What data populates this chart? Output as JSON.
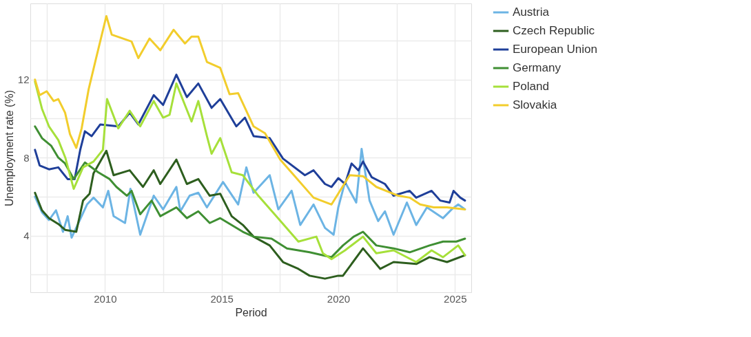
{
  "chart_data": {
    "type": "line",
    "xlabel": "Period",
    "ylabel": "Unemployment rate (%)",
    "xlim": [
      2006.8,
      2025.7
    ],
    "xticks": [
      {
        "value": 2007.5,
        "label": null
      },
      2010,
      {
        "value": 2012.5,
        "label": null
      },
      2015,
      {
        "value": 2017.5,
        "label": null
      },
      2020,
      {
        "value": 2022.5,
        "label": null
      },
      2025
    ],
    "ylim": [
      1.1,
      15.9
    ],
    "yticks": [
      {
        "value": 2,
        "label": null
      },
      4,
      {
        "value": 6,
        "label": null
      },
      8,
      {
        "value": 10,
        "label": null
      },
      12,
      {
        "value": 14,
        "label": null
      }
    ],
    "grid": true,
    "legend": "right",
    "line_style": "solid",
    "marker": "none",
    "series": [
      {
        "name": "Austria",
        "color": "#6cb4e4",
        "x": [
          2007.0,
          2007.3,
          2007.6,
          2007.9,
          2008.2,
          2008.4,
          2008.57,
          2009.23,
          2009.51,
          2009.91,
          2010.14,
          2010.37,
          2010.86,
          2011.09,
          2011.51,
          2012.09,
          2012.49,
          2013.06,
          2013.23,
          2013.63,
          2014.0,
          2014.37,
          2015.06,
          2015.71,
          2016.06,
          2016.37,
          2017.06,
          2017.43,
          2018.0,
          2018.37,
          2018.94,
          2019.43,
          2019.8,
          2020.0,
          2020.29,
          2020.77,
          2021.0,
          2021.34,
          2021.71,
          2022.0,
          2022.37,
          2022.94,
          2023.34,
          2023.8,
          2024.49,
          2024.86,
          2025.14,
          2025.43
        ],
        "values": [
          6.0,
          5.2,
          4.8,
          5.3,
          4.2,
          5.0,
          3.9,
          5.6,
          5.95,
          5.45,
          6.3,
          5.0,
          4.65,
          6.4,
          4.05,
          6.05,
          5.35,
          6.5,
          5.25,
          6.05,
          6.2,
          5.45,
          6.75,
          5.6,
          7.5,
          6.2,
          7.1,
          5.35,
          6.3,
          4.55,
          5.6,
          4.4,
          4.05,
          5.45,
          6.75,
          5.7,
          8.45,
          5.8,
          4.75,
          5.25,
          4.05,
          5.7,
          4.55,
          5.45,
          4.9,
          5.35,
          5.6,
          5.35
        ]
      },
      {
        "name": "Czech Republic",
        "color": "#2d5e1e",
        "x": [
          2007.0,
          2007.3,
          2007.6,
          2008.0,
          2008.29,
          2008.77,
          2009.06,
          2009.34,
          2009.51,
          2010.06,
          2010.37,
          2011.06,
          2011.63,
          2012.09,
          2012.37,
          2013.06,
          2013.51,
          2014.0,
          2014.49,
          2014.94,
          2015.43,
          2015.91,
          2016.37,
          2017.06,
          2017.63,
          2018.29,
          2018.77,
          2019.43,
          2020.0,
          2020.2,
          2021.06,
          2021.8,
          2022.37,
          2023.34,
          2023.91,
          2024.66,
          2025.43
        ],
        "values": [
          6.2,
          5.3,
          4.9,
          4.6,
          4.3,
          4.2,
          5.8,
          6.15,
          7.2,
          8.35,
          7.1,
          7.35,
          6.5,
          7.35,
          6.65,
          7.9,
          6.65,
          6.9,
          6.05,
          6.15,
          5.0,
          4.55,
          3.95,
          3.5,
          2.65,
          2.3,
          1.95,
          1.8,
          1.95,
          1.95,
          3.35,
          2.3,
          2.65,
          2.55,
          2.9,
          2.65,
          3.0
        ]
      },
      {
        "name": "European Union",
        "color": "#1f3f99",
        "x": [
          2007.0,
          2007.2,
          2007.6,
          2008.0,
          2008.4,
          2008.7,
          2008.94,
          2009.14,
          2009.43,
          2009.8,
          2010.57,
          2011.06,
          2011.43,
          2012.09,
          2012.49,
          2013.06,
          2013.51,
          2014.0,
          2014.57,
          2014.94,
          2015.63,
          2016.0,
          2016.37,
          2017.06,
          2017.63,
          2018.57,
          2018.94,
          2019.43,
          2019.71,
          2020.0,
          2020.29,
          2020.57,
          2020.86,
          2021.06,
          2021.43,
          2022.0,
          2022.37,
          2023.06,
          2023.34,
          2024.0,
          2024.37,
          2024.77,
          2024.94,
          2025.23,
          2025.43
        ],
        "values": [
          8.4,
          7.6,
          7.4,
          7.5,
          6.9,
          6.9,
          8.4,
          9.35,
          9.1,
          9.7,
          9.6,
          10.3,
          9.7,
          11.2,
          10.7,
          12.25,
          11.1,
          11.8,
          10.55,
          11.0,
          9.6,
          10.05,
          9.1,
          9.0,
          7.95,
          7.1,
          7.35,
          6.65,
          6.5,
          6.95,
          6.65,
          7.7,
          7.35,
          7.8,
          7.0,
          6.65,
          6.05,
          6.3,
          5.95,
          6.3,
          5.8,
          5.7,
          6.3,
          5.95,
          5.8
        ]
      },
      {
        "name": "Germany",
        "color": "#3f8f33",
        "x": [
          2007.0,
          2007.3,
          2007.7,
          2008.0,
          2008.29,
          2008.66,
          2009.14,
          2009.71,
          2010.2,
          2010.49,
          2010.94,
          2011.14,
          2011.51,
          2012.0,
          2012.37,
          2013.06,
          2013.51,
          2014.0,
          2014.49,
          2014.94,
          2015.91,
          2016.37,
          2017.14,
          2017.8,
          2018.77,
          2019.71,
          2020.2,
          2020.66,
          2021.06,
          2021.63,
          2022.37,
          2023.06,
          2023.91,
          2024.49,
          2025.06,
          2025.43
        ],
        "values": [
          9.6,
          9.0,
          8.6,
          8.0,
          7.7,
          6.9,
          7.75,
          7.25,
          6.9,
          6.5,
          6.05,
          6.3,
          5.1,
          5.8,
          5.0,
          5.45,
          4.9,
          5.25,
          4.65,
          4.9,
          4.2,
          3.95,
          3.85,
          3.35,
          3.15,
          2.9,
          3.5,
          3.95,
          4.2,
          3.5,
          3.35,
          3.15,
          3.5,
          3.7,
          3.7,
          3.85
        ]
      },
      {
        "name": "Poland",
        "color": "#a6e03a",
        "x": [
          2007.0,
          2007.3,
          2007.6,
          2008.0,
          2008.3,
          2008.66,
          2009.06,
          2009.51,
          2009.91,
          2010.09,
          2010.57,
          2011.06,
          2011.51,
          2012.09,
          2012.49,
          2012.77,
          2013.06,
          2013.71,
          2014.0,
          2014.37,
          2014.57,
          2014.94,
          2015.43,
          2015.91,
          2016.57,
          2017.34,
          2018.29,
          2019.06,
          2019.34,
          2019.71,
          2020.29,
          2021.06,
          2021.63,
          2022.37,
          2023.34,
          2024.0,
          2024.49,
          2025.14,
          2025.43
        ],
        "values": [
          11.9,
          10.5,
          9.6,
          8.9,
          8.0,
          6.4,
          7.5,
          7.8,
          8.4,
          11.0,
          9.5,
          10.4,
          9.6,
          10.9,
          10.05,
          10.2,
          11.8,
          9.85,
          10.9,
          9.1,
          8.2,
          9.0,
          7.25,
          7.1,
          6.05,
          5.0,
          3.7,
          3.95,
          3.1,
          2.8,
          3.25,
          3.95,
          3.1,
          3.25,
          2.65,
          3.25,
          2.9,
          3.5,
          3.0
        ]
      },
      {
        "name": "Slovakia",
        "color": "#f2cd2c",
        "x": [
          2007.0,
          2007.2,
          2007.5,
          2007.8,
          2008.0,
          2008.29,
          2008.5,
          2008.77,
          2009.0,
          2009.3,
          2009.6,
          2010.06,
          2010.29,
          2011.14,
          2011.43,
          2011.91,
          2012.37,
          2012.94,
          2013.43,
          2013.71,
          2014.0,
          2014.37,
          2014.94,
          2015.34,
          2015.71,
          2016.37,
          2016.86,
          2017.51,
          2018.94,
          2019.71,
          2020.49,
          2021.06,
          2021.63,
          2022.57,
          2023.06,
          2023.51,
          2024.09,
          2024.66,
          2025.43
        ],
        "values": [
          12.0,
          11.2,
          11.4,
          10.9,
          11.0,
          10.3,
          9.2,
          8.5,
          9.5,
          11.5,
          13.0,
          15.25,
          14.3,
          13.95,
          13.1,
          14.1,
          13.5,
          14.55,
          13.85,
          14.2,
          14.2,
          12.9,
          12.6,
          11.25,
          11.3,
          9.6,
          9.25,
          7.9,
          5.95,
          5.6,
          7.1,
          7.05,
          6.5,
          6.05,
          5.95,
          5.6,
          5.45,
          5.45,
          5.35
        ]
      }
    ]
  }
}
